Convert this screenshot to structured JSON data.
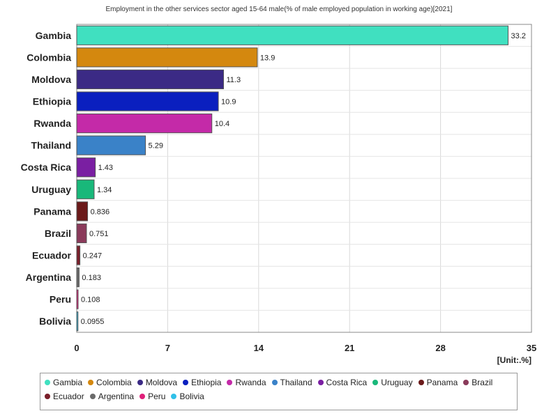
{
  "chart_data": {
    "type": "bar",
    "orientation": "horizontal",
    "title": "Employment in the other services sector aged 15-64 male(% of male employed population in working age)[2021]",
    "unit_label": "[Unit:.%]",
    "xlim": [
      0,
      35
    ],
    "x_ticks": [
      "0",
      "7",
      "14",
      "21",
      "28",
      "35"
    ],
    "grid": true,
    "legend_placement": "bottom",
    "categories": [
      "Gambia",
      "Colombia",
      "Moldova",
      "Ethiopia",
      "Rwanda",
      "Thailand",
      "Costa Rica",
      "Uruguay",
      "Panama",
      "Brazil",
      "Ecuador",
      "Argentina",
      "Peru",
      "Bolivia"
    ],
    "values": [
      33.2,
      13.9,
      11.3,
      10.9,
      10.4,
      5.29,
      1.43,
      1.34,
      0.836,
      0.751,
      0.247,
      0.183,
      0.108,
      0.0955
    ],
    "value_labels": [
      "33.2",
      "13.9",
      "11.3",
      "10.9",
      "10.4",
      "5.29",
      "1.43",
      "1.34",
      "0.836",
      "0.751",
      "0.247",
      "0.183",
      "0.108",
      "0.0955"
    ],
    "colors": [
      "#40e0c0",
      "#d4880f",
      "#3b2a85",
      "#0a1fbf",
      "#c42aa8",
      "#3a82c8",
      "#7a1fa2",
      "#19b87a",
      "#6b1a1a",
      "#8a3a5a",
      "#7a1f2a",
      "#6a6a6a",
      "#e0207a",
      "#30c0e8"
    ]
  }
}
